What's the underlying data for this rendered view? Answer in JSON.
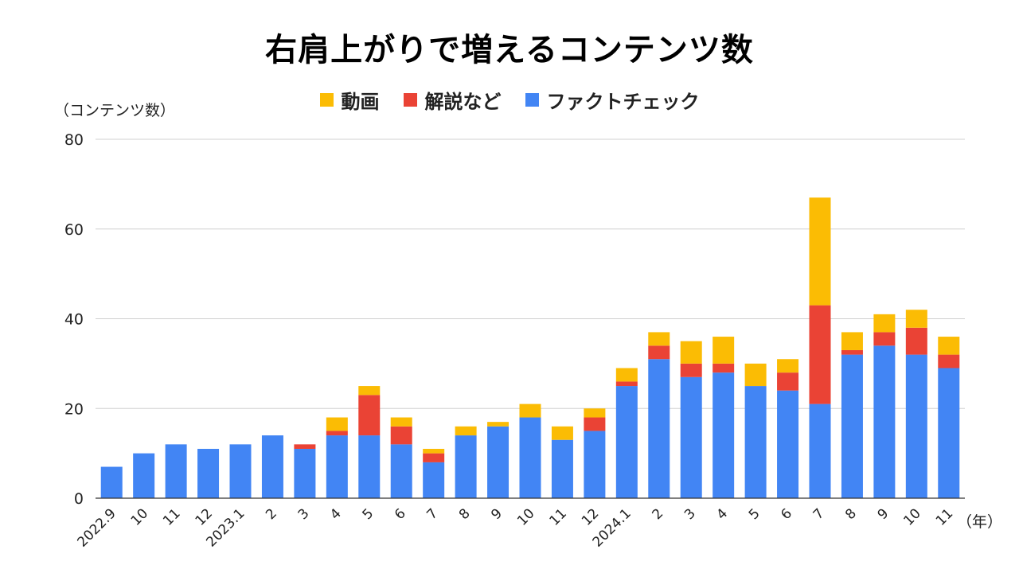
{
  "chart_data": {
    "type": "bar",
    "stacked": true,
    "title": "右肩上がりで増えるコンテンツ数",
    "ylabel": "（コンテンツ数）",
    "xlabel": "（年）",
    "ylim": [
      0,
      80
    ],
    "yticks": [
      0,
      20,
      40,
      60,
      80
    ],
    "categories": [
      "2022.9",
      "10",
      "11",
      "12",
      "2023.1",
      "2",
      "3",
      "4",
      "5",
      "6",
      "7",
      "8",
      "9",
      "10",
      "11",
      "12",
      "2024.1",
      "2",
      "3",
      "4",
      "5",
      "6",
      "7",
      "8",
      "9",
      "10",
      "11"
    ],
    "series": [
      {
        "name": "ファクトチェック",
        "color": "#4285f4",
        "values": [
          7,
          10,
          12,
          11,
          12,
          14,
          11,
          14,
          14,
          12,
          8,
          14,
          16,
          18,
          13,
          15,
          25,
          31,
          27,
          28,
          25,
          24,
          21,
          32,
          34,
          32,
          29
        ]
      },
      {
        "name": "解説など",
        "color": "#ea4335",
        "values": [
          0,
          0,
          0,
          0,
          0,
          0,
          1,
          1,
          9,
          4,
          2,
          0,
          0,
          0,
          0,
          3,
          1,
          3,
          3,
          2,
          0,
          4,
          22,
          1,
          3,
          6,
          3
        ]
      },
      {
        "name": "動画",
        "color": "#fbbc04",
        "values": [
          0,
          0,
          0,
          0,
          0,
          0,
          0,
          3,
          2,
          2,
          1,
          2,
          1,
          3,
          3,
          2,
          3,
          3,
          5,
          6,
          5,
          3,
          24,
          4,
          4,
          4,
          4
        ]
      }
    ],
    "legend": [
      {
        "name": "動画",
        "color": "#fbbc04"
      },
      {
        "name": "解説など",
        "color": "#ea4335"
      },
      {
        "name": "ファクトチェック",
        "color": "#4285f4"
      }
    ],
    "legend_position": "top-center"
  }
}
